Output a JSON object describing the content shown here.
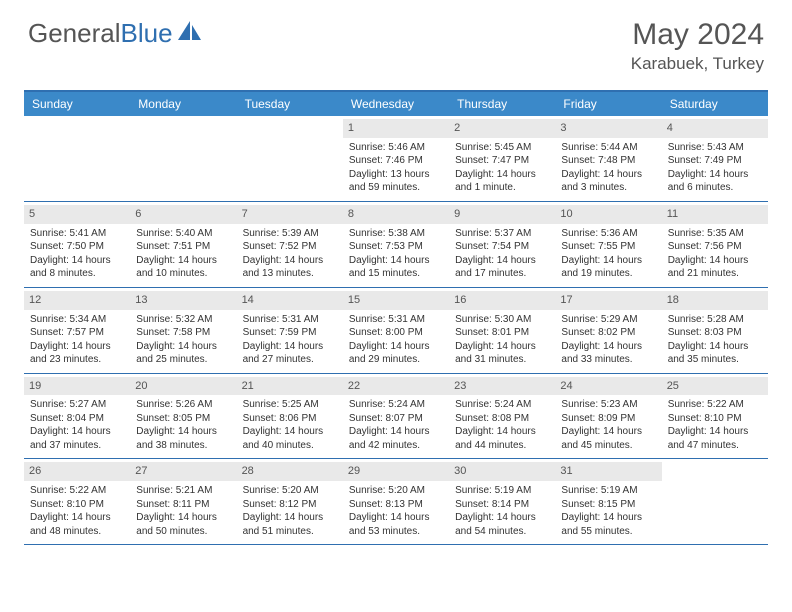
{
  "brand": {
    "general": "General",
    "blue": "Blue"
  },
  "header": {
    "month_title": "May 2024",
    "location": "Karabuek, Turkey"
  },
  "style": {
    "accent": "#3b89c9",
    "border": "#2f6fb0",
    "daynum_bg": "#e9e9e9",
    "text": "#555555",
    "body_bg": "#ffffff",
    "cell_fontsize": 10,
    "header_fontsize": 12
  },
  "weekdays": [
    "Sunday",
    "Monday",
    "Tuesday",
    "Wednesday",
    "Thursday",
    "Friday",
    "Saturday"
  ],
  "weeks": [
    [
      null,
      null,
      null,
      {
        "n": "1",
        "sr": "5:46 AM",
        "ss": "7:46 PM",
        "dl": "13 hours and 59 minutes."
      },
      {
        "n": "2",
        "sr": "5:45 AM",
        "ss": "7:47 PM",
        "dl": "14 hours and 1 minute."
      },
      {
        "n": "3",
        "sr": "5:44 AM",
        "ss": "7:48 PM",
        "dl": "14 hours and 3 minutes."
      },
      {
        "n": "4",
        "sr": "5:43 AM",
        "ss": "7:49 PM",
        "dl": "14 hours and 6 minutes."
      }
    ],
    [
      {
        "n": "5",
        "sr": "5:41 AM",
        "ss": "7:50 PM",
        "dl": "14 hours and 8 minutes."
      },
      {
        "n": "6",
        "sr": "5:40 AM",
        "ss": "7:51 PM",
        "dl": "14 hours and 10 minutes."
      },
      {
        "n": "7",
        "sr": "5:39 AM",
        "ss": "7:52 PM",
        "dl": "14 hours and 13 minutes."
      },
      {
        "n": "8",
        "sr": "5:38 AM",
        "ss": "7:53 PM",
        "dl": "14 hours and 15 minutes."
      },
      {
        "n": "9",
        "sr": "5:37 AM",
        "ss": "7:54 PM",
        "dl": "14 hours and 17 minutes."
      },
      {
        "n": "10",
        "sr": "5:36 AM",
        "ss": "7:55 PM",
        "dl": "14 hours and 19 minutes."
      },
      {
        "n": "11",
        "sr": "5:35 AM",
        "ss": "7:56 PM",
        "dl": "14 hours and 21 minutes."
      }
    ],
    [
      {
        "n": "12",
        "sr": "5:34 AM",
        "ss": "7:57 PM",
        "dl": "14 hours and 23 minutes."
      },
      {
        "n": "13",
        "sr": "5:32 AM",
        "ss": "7:58 PM",
        "dl": "14 hours and 25 minutes."
      },
      {
        "n": "14",
        "sr": "5:31 AM",
        "ss": "7:59 PM",
        "dl": "14 hours and 27 minutes."
      },
      {
        "n": "15",
        "sr": "5:31 AM",
        "ss": "8:00 PM",
        "dl": "14 hours and 29 minutes."
      },
      {
        "n": "16",
        "sr": "5:30 AM",
        "ss": "8:01 PM",
        "dl": "14 hours and 31 minutes."
      },
      {
        "n": "17",
        "sr": "5:29 AM",
        "ss": "8:02 PM",
        "dl": "14 hours and 33 minutes."
      },
      {
        "n": "18",
        "sr": "5:28 AM",
        "ss": "8:03 PM",
        "dl": "14 hours and 35 minutes."
      }
    ],
    [
      {
        "n": "19",
        "sr": "5:27 AM",
        "ss": "8:04 PM",
        "dl": "14 hours and 37 minutes."
      },
      {
        "n": "20",
        "sr": "5:26 AM",
        "ss": "8:05 PM",
        "dl": "14 hours and 38 minutes."
      },
      {
        "n": "21",
        "sr": "5:25 AM",
        "ss": "8:06 PM",
        "dl": "14 hours and 40 minutes."
      },
      {
        "n": "22",
        "sr": "5:24 AM",
        "ss": "8:07 PM",
        "dl": "14 hours and 42 minutes."
      },
      {
        "n": "23",
        "sr": "5:24 AM",
        "ss": "8:08 PM",
        "dl": "14 hours and 44 minutes."
      },
      {
        "n": "24",
        "sr": "5:23 AM",
        "ss": "8:09 PM",
        "dl": "14 hours and 45 minutes."
      },
      {
        "n": "25",
        "sr": "5:22 AM",
        "ss": "8:10 PM",
        "dl": "14 hours and 47 minutes."
      }
    ],
    [
      {
        "n": "26",
        "sr": "5:22 AM",
        "ss": "8:10 PM",
        "dl": "14 hours and 48 minutes."
      },
      {
        "n": "27",
        "sr": "5:21 AM",
        "ss": "8:11 PM",
        "dl": "14 hours and 50 minutes."
      },
      {
        "n": "28",
        "sr": "5:20 AM",
        "ss": "8:12 PM",
        "dl": "14 hours and 51 minutes."
      },
      {
        "n": "29",
        "sr": "5:20 AM",
        "ss": "8:13 PM",
        "dl": "14 hours and 53 minutes."
      },
      {
        "n": "30",
        "sr": "5:19 AM",
        "ss": "8:14 PM",
        "dl": "14 hours and 54 minutes."
      },
      {
        "n": "31",
        "sr": "5:19 AM",
        "ss": "8:15 PM",
        "dl": "14 hours and 55 minutes."
      },
      null
    ]
  ],
  "labels": {
    "sunrise": "Sunrise: ",
    "sunset": "Sunset: ",
    "daylight": "Daylight: "
  }
}
